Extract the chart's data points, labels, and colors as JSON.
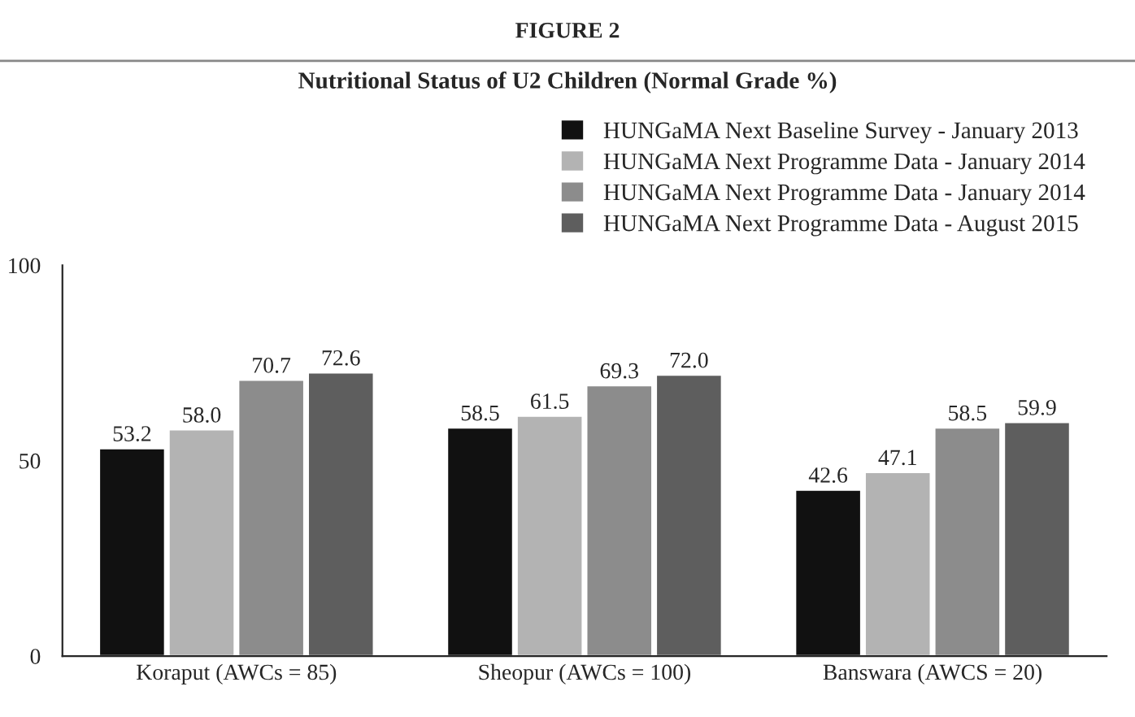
{
  "chart_data": {
    "type": "bar",
    "title": "FIGURE 2",
    "subtitle": "Nutritional Status of U2 Children (Normal Grade %)",
    "categories": [
      "Koraput (AWCs = 85)",
      "Sheopur (AWCs = 100)",
      "Banswara (AWCS = 20)"
    ],
    "series": [
      {
        "name": "HUNGaMA Next Baseline Survey - January 2013",
        "color": "#111111",
        "values": [
          53.2,
          58.5,
          42.6
        ],
        "value_labels": [
          "53.2",
          "58.5",
          "42.6"
        ]
      },
      {
        "name": "HUNGaMA Next Programme Data - January 2014",
        "color": "#b3b3b3",
        "values": [
          58.0,
          61.5,
          47.1
        ],
        "value_labels": [
          "58.0",
          "61.5",
          "47.1"
        ]
      },
      {
        "name": "HUNGaMA Next Programme Data - January 2014",
        "color": "#8c8c8c",
        "values": [
          70.7,
          69.3,
          58.5
        ],
        "value_labels": [
          "70.7",
          "69.3",
          "58.5"
        ]
      },
      {
        "name": "HUNGaMA Next Programme Data - August 2015",
        "color": "#5e5e5e",
        "values": [
          72.6,
          72.0,
          59.9
        ],
        "value_labels": [
          "72.6",
          "72.0",
          "59.9"
        ]
      }
    ],
    "ylim": [
      0,
      100
    ],
    "yticks": [
      0,
      50,
      100
    ],
    "legend": "top right",
    "grid": false
  }
}
